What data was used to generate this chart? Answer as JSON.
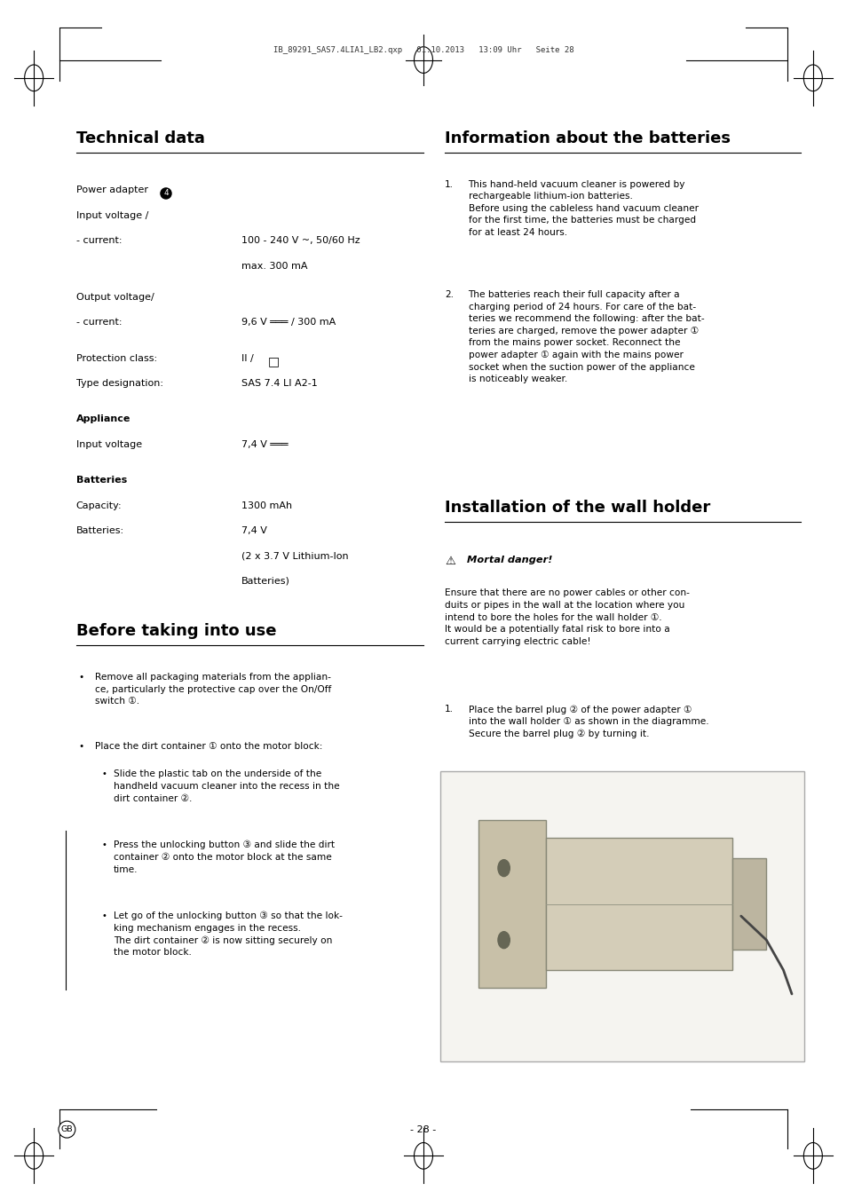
{
  "bg_color": "#ffffff",
  "header_text": "IB_89291_SAS7.4LIA1_LB2.qxp   01.10.2013   13:09 Uhr   Seite 28",
  "footer_text": "- 28 -",
  "tech_title": "Technical data",
  "info_title": "Information about the batteries",
  "install_title": "Installation of the wall holder",
  "before_title": "Before taking into use"
}
